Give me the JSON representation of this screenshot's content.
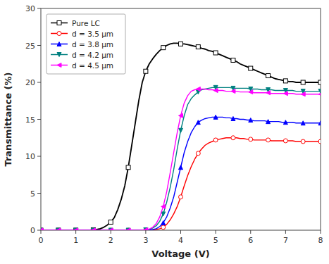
{
  "chart_data": {
    "type": "line",
    "xlabel": "Voltage (V)",
    "ylabel": "Transmittance (%)",
    "xlim": [
      0,
      8
    ],
    "ylim": [
      0,
      30
    ],
    "xticks": [
      0,
      1,
      2,
      3,
      4,
      5,
      6,
      7,
      8
    ],
    "yticks": [
      0,
      5,
      10,
      15,
      20,
      25,
      30
    ],
    "grid": false,
    "legend": "upper left",
    "x": [
      0.0,
      0.1,
      0.2,
      0.3,
      0.4,
      0.5,
      0.6,
      0.7,
      0.8,
      0.9,
      1.0,
      1.1,
      1.2,
      1.3,
      1.4,
      1.5,
      1.6,
      1.7,
      1.8,
      1.9,
      2.0,
      2.1,
      2.2,
      2.3,
      2.4,
      2.5,
      2.6,
      2.7,
      2.8,
      2.9,
      3.0,
      3.1,
      3.2,
      3.3,
      3.4,
      3.5,
      3.6,
      3.7,
      3.8,
      3.9,
      4.0,
      4.1,
      4.2,
      4.3,
      4.4,
      4.5,
      4.6,
      4.7,
      4.8,
      4.9,
      5.0,
      5.1,
      5.2,
      5.3,
      5.4,
      5.5,
      5.6,
      5.7,
      5.8,
      5.9,
      6.0,
      6.1,
      6.2,
      6.3,
      6.4,
      6.5,
      6.6,
      6.7,
      6.8,
      6.9,
      7.0,
      7.1,
      7.2,
      7.3,
      7.4,
      7.5,
      7.6,
      7.7,
      7.8,
      7.9,
      8.0
    ],
    "series": [
      {
        "name": "Pure LC",
        "color": "black",
        "marker": "square-open",
        "values": [
          0.0,
          0.0,
          0.0,
          0.0,
          0.0,
          0.0,
          0.0,
          0.0,
          0.0,
          0.0,
          0.0,
          0.0,
          0.0,
          0.0,
          0.0,
          0.05,
          0.1,
          0.2,
          0.4,
          0.7,
          1.1,
          1.7,
          2.8,
          4.2,
          6.0,
          8.5,
          11.5,
          14.5,
          17.5,
          20.0,
          21.5,
          22.5,
          23.2,
          23.8,
          24.3,
          24.7,
          25.0,
          25.2,
          25.3,
          25.3,
          25.2,
          25.2,
          25.1,
          25.0,
          24.9,
          24.8,
          24.6,
          24.5,
          24.3,
          24.2,
          24.0,
          23.8,
          23.6,
          23.4,
          23.2,
          23.0,
          22.8,
          22.5,
          22.3,
          22.1,
          21.9,
          21.7,
          21.5,
          21.3,
          21.1,
          20.9,
          20.7,
          20.5,
          20.4,
          20.3,
          20.2,
          20.1,
          20.1,
          20.0,
          20.0,
          20.0,
          20.0,
          20.0,
          20.0,
          20.0,
          20.0
        ]
      },
      {
        "name": "d = 3.5 μm",
        "color": "red",
        "marker": "circle-open",
        "values": [
          0.0,
          0.0,
          0.0,
          0.0,
          0.0,
          0.0,
          0.0,
          0.0,
          0.0,
          0.0,
          0.0,
          0.0,
          0.0,
          0.0,
          0.0,
          0.0,
          0.0,
          0.0,
          0.0,
          0.0,
          0.0,
          0.0,
          0.0,
          0.0,
          0.0,
          0.0,
          0.0,
          0.0,
          0.0,
          0.0,
          0.0,
          0.0,
          0.05,
          0.1,
          0.2,
          0.4,
          0.8,
          1.4,
          2.2,
          3.2,
          4.5,
          6.0,
          7.4,
          8.6,
          9.6,
          10.4,
          11.0,
          11.5,
          11.8,
          12.0,
          12.2,
          12.3,
          12.4,
          12.5,
          12.5,
          12.5,
          12.5,
          12.4,
          12.4,
          12.3,
          12.3,
          12.2,
          12.2,
          12.2,
          12.2,
          12.2,
          12.1,
          12.1,
          12.1,
          12.1,
          12.1,
          12.1,
          12.1,
          12.0,
          12.0,
          12.0,
          12.0,
          12.0,
          12.0,
          12.0,
          12.0
        ]
      },
      {
        "name": "d = 3.8 μm",
        "color": "blue",
        "marker": "triangle-up",
        "values": [
          0.0,
          0.0,
          0.0,
          0.0,
          0.0,
          0.0,
          0.0,
          0.0,
          0.0,
          0.0,
          0.0,
          0.0,
          0.0,
          0.0,
          0.0,
          0.0,
          0.0,
          0.0,
          0.0,
          0.0,
          0.0,
          0.0,
          0.0,
          0.0,
          0.0,
          0.0,
          0.0,
          0.0,
          0.0,
          0.0,
          0.0,
          0.05,
          0.1,
          0.2,
          0.5,
          1.0,
          1.8,
          3.0,
          4.5,
          6.5,
          8.5,
          10.5,
          12.0,
          13.2,
          14.0,
          14.6,
          14.9,
          15.1,
          15.2,
          15.3,
          15.3,
          15.3,
          15.3,
          15.2,
          15.2,
          15.1,
          15.1,
          15.0,
          15.0,
          14.9,
          14.9,
          14.8,
          14.8,
          14.8,
          14.8,
          14.7,
          14.7,
          14.7,
          14.7,
          14.6,
          14.6,
          14.6,
          14.6,
          14.5,
          14.5,
          14.5,
          14.5,
          14.5,
          14.5,
          14.5,
          14.5
        ]
      },
      {
        "name": "d = 4.2 μm",
        "color": "#008080",
        "marker": "triangle-down",
        "values": [
          0.0,
          0.0,
          0.0,
          0.0,
          0.0,
          0.0,
          0.0,
          0.0,
          0.0,
          0.0,
          0.0,
          0.0,
          0.0,
          0.0,
          0.0,
          0.0,
          0.0,
          0.0,
          0.0,
          0.0,
          0.0,
          0.0,
          0.0,
          0.0,
          0.0,
          0.0,
          0.0,
          0.0,
          0.0,
          0.0,
          0.05,
          0.1,
          0.3,
          0.6,
          1.2,
          2.2,
          3.8,
          5.8,
          8.2,
          11.0,
          13.5,
          15.5,
          17.0,
          17.8,
          18.3,
          18.7,
          19.0,
          19.1,
          19.2,
          19.3,
          19.3,
          19.3,
          19.3,
          19.3,
          19.3,
          19.2,
          19.2,
          19.2,
          19.2,
          19.2,
          19.1,
          19.1,
          19.1,
          19.0,
          19.0,
          19.0,
          19.0,
          18.9,
          18.9,
          18.9,
          18.9,
          18.9,
          18.9,
          18.8,
          18.8,
          18.8,
          18.8,
          18.8,
          18.8,
          18.8,
          18.8
        ]
      },
      {
        "name": "d = 4.5 μm",
        "color": "magenta",
        "marker": "triangle-left",
        "values": [
          0.0,
          0.0,
          0.0,
          0.0,
          0.0,
          0.0,
          0.0,
          0.0,
          0.0,
          0.0,
          0.0,
          0.0,
          0.0,
          0.0,
          0.0,
          0.0,
          0.0,
          0.0,
          0.0,
          0.0,
          0.0,
          0.0,
          0.0,
          0.0,
          0.0,
          0.0,
          0.0,
          0.0,
          0.0,
          0.0,
          0.05,
          0.15,
          0.4,
          0.9,
          1.8,
          3.2,
          5.2,
          7.8,
          10.5,
          13.2,
          15.5,
          17.2,
          18.2,
          18.8,
          19.0,
          19.1,
          19.1,
          19.1,
          19.0,
          19.0,
          18.9,
          18.9,
          18.9,
          18.8,
          18.8,
          18.8,
          18.8,
          18.7,
          18.7,
          18.7,
          18.7,
          18.6,
          18.6,
          18.6,
          18.6,
          18.6,
          18.5,
          18.5,
          18.5,
          18.5,
          18.5,
          18.5,
          18.5,
          18.4,
          18.4,
          18.4,
          18.4,
          18.4,
          18.4,
          18.4,
          18.4
        ]
      }
    ]
  }
}
